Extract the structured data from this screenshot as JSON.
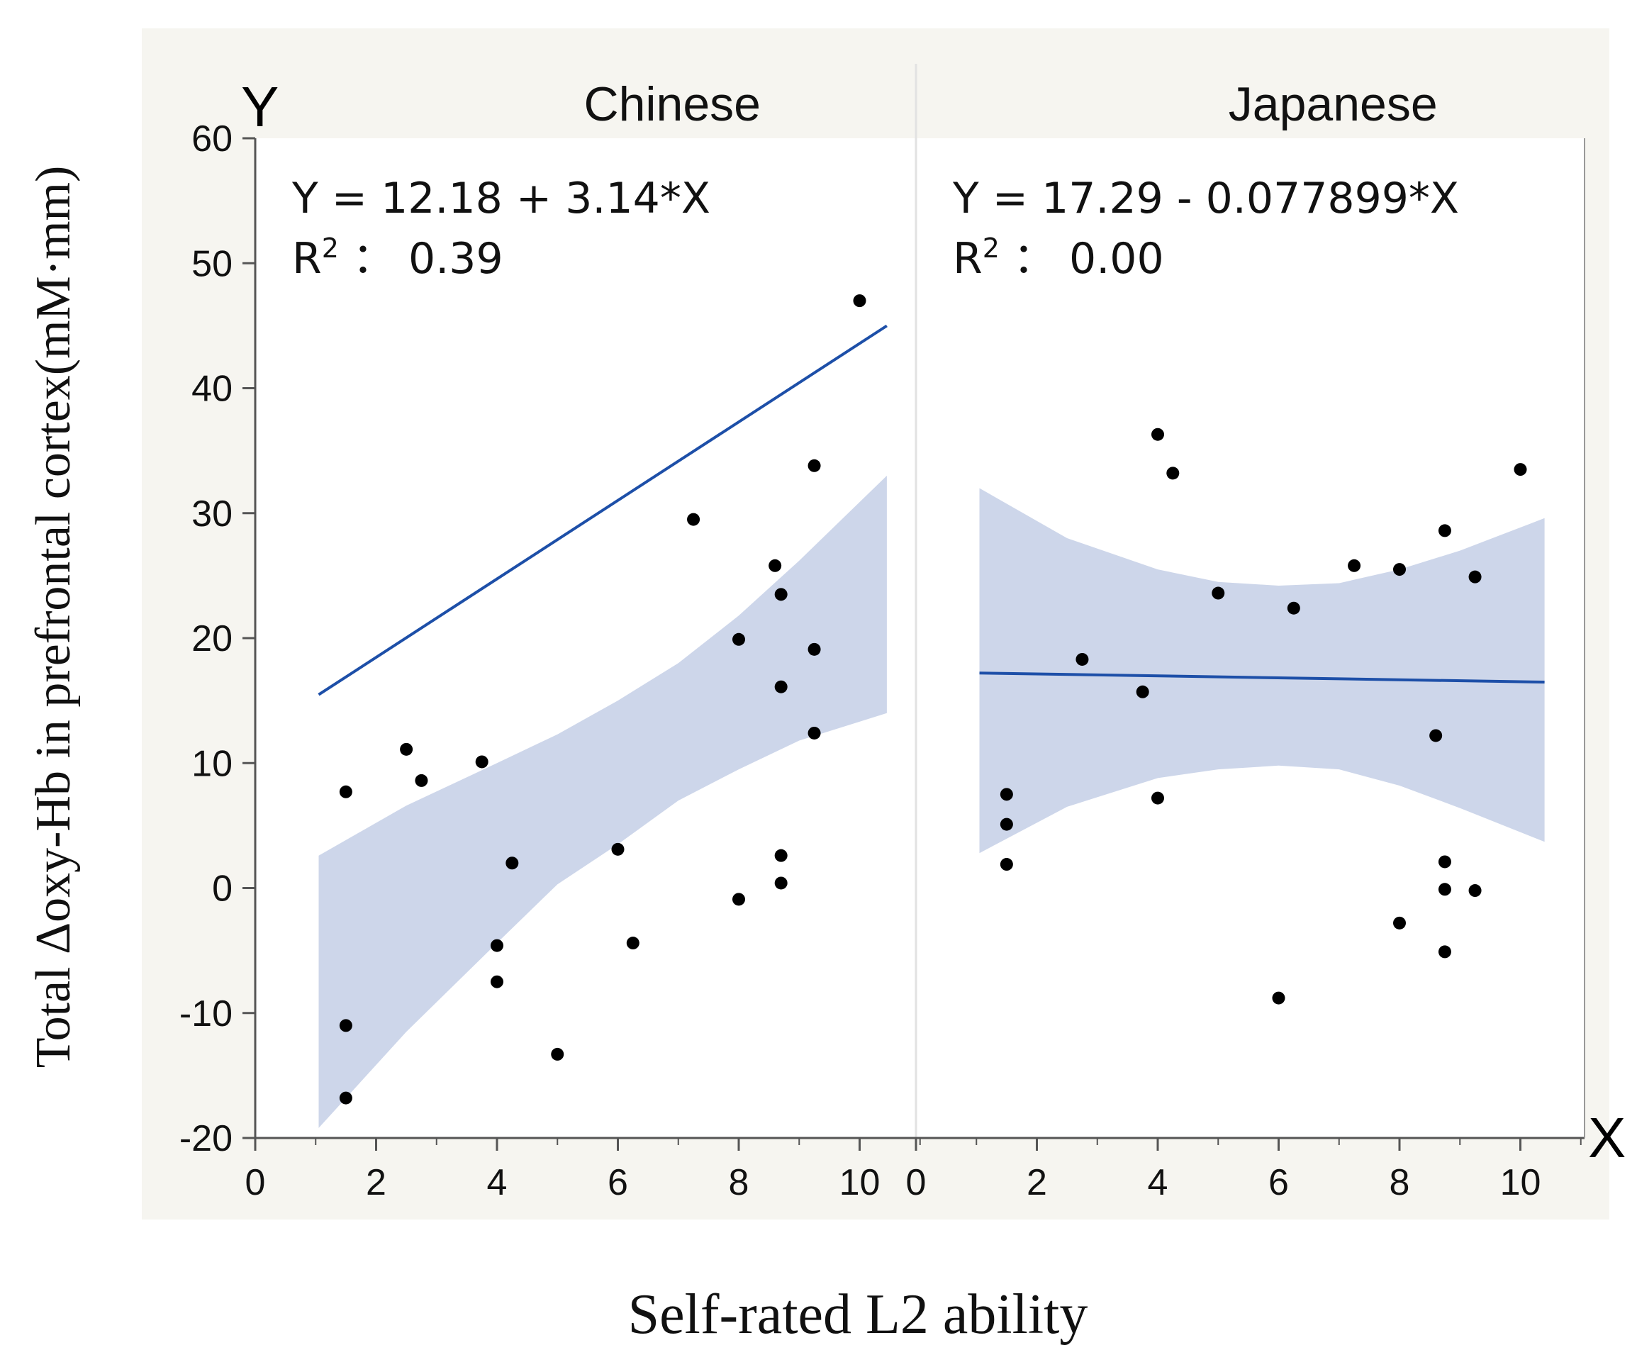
{
  "colors": {
    "panel_background": "#f6f5f0",
    "plot_background": "#ffffff",
    "band": "#cdd6ea",
    "fit_line": "#1d4fa8",
    "points": "#000000",
    "axis": "#555555"
  },
  "chart_data": {
    "type": "scatter",
    "x_axis_letter": "X",
    "y_axis_letter": "Y",
    "xlabel": "Self-rated L2 ability",
    "ylabel": "Total Δoxy-Hb in prefrontal cortex(mM·mm)",
    "ylim": [
      -20,
      60
    ],
    "yticks": [
      -20,
      -10,
      0,
      10,
      20,
      30,
      40,
      50,
      60
    ],
    "xlim": [
      0,
      11.4
    ],
    "xticks": [
      0,
      2,
      4,
      6,
      8,
      10
    ],
    "panels": [
      {
        "title": "Chinese",
        "equation": "Y = 12.18 + 3.14*X",
        "r2_label": "R",
        "r2_sup": "2",
        "r2_value": "： 0.39",
        "intercept": 12.18,
        "slope": 3.14,
        "fit_x_range": [
          1.05,
          10.45
        ],
        "band_upper": [
          [
            1.05,
            2.6
          ],
          [
            2.5,
            6.6
          ],
          [
            4.0,
            10.0
          ],
          [
            5.0,
            12.3
          ],
          [
            6.0,
            15.0
          ],
          [
            7.0,
            18.0
          ],
          [
            8.0,
            21.8
          ],
          [
            9.0,
            26.2
          ],
          [
            10.45,
            33.0
          ]
        ],
        "band_lower": [
          [
            1.05,
            -19.2
          ],
          [
            2.5,
            -11.5
          ],
          [
            4.0,
            -4.4
          ],
          [
            5.0,
            0.3
          ],
          [
            6.0,
            3.5
          ],
          [
            7.0,
            7.0
          ],
          [
            8.0,
            9.5
          ],
          [
            9.0,
            11.8
          ],
          [
            10.45,
            14.0
          ]
        ],
        "points": [
          [
            1.5,
            7.7
          ],
          [
            1.5,
            -11
          ],
          [
            1.5,
            -16.8
          ],
          [
            2.5,
            11.1
          ],
          [
            2.75,
            8.6
          ],
          [
            3.75,
            10.1
          ],
          [
            4.0,
            -4.6
          ],
          [
            4.0,
            -7.5
          ],
          [
            4.25,
            2.0
          ],
          [
            5.0,
            -13.3
          ],
          [
            6.0,
            3.1
          ],
          [
            6.25,
            -4.4
          ],
          [
            7.25,
            29.5
          ],
          [
            8.0,
            19.9
          ],
          [
            8.0,
            -0.9
          ],
          [
            8.6,
            25.8
          ],
          [
            8.7,
            23.5
          ],
          [
            8.7,
            16.1
          ],
          [
            8.7,
            2.6
          ],
          [
            8.7,
            0.4
          ],
          [
            9.25,
            33.8
          ],
          [
            9.25,
            19.1
          ],
          [
            9.25,
            12.4
          ],
          [
            10.0,
            47.0
          ]
        ]
      },
      {
        "title": "Japanese",
        "equation": "Y = 17.29 - 0.077899*X",
        "r2_label": "R",
        "r2_sup": "2",
        "r2_value": "： 0.00",
        "intercept": 17.29,
        "slope": -0.077899,
        "fit_x_range": [
          1.05,
          10.4
        ],
        "band_upper": [
          [
            1.05,
            32.0
          ],
          [
            2.5,
            28.0
          ],
          [
            4.0,
            25.5
          ],
          [
            5.0,
            24.5
          ],
          [
            6.0,
            24.2
          ],
          [
            7.0,
            24.4
          ],
          [
            8.0,
            25.5
          ],
          [
            9.0,
            27.0
          ],
          [
            10.4,
            29.6
          ]
        ],
        "band_lower": [
          [
            1.05,
            2.8
          ],
          [
            2.5,
            6.5
          ],
          [
            4.0,
            8.8
          ],
          [
            5.0,
            9.5
          ],
          [
            6.0,
            9.8
          ],
          [
            7.0,
            9.5
          ],
          [
            8.0,
            8.2
          ],
          [
            9.0,
            6.4
          ],
          [
            10.4,
            3.7
          ]
        ],
        "points": [
          [
            1.5,
            7.5
          ],
          [
            1.5,
            5.1
          ],
          [
            1.5,
            1.9
          ],
          [
            2.75,
            18.3
          ],
          [
            3.75,
            15.7
          ],
          [
            4.0,
            36.3
          ],
          [
            4.0,
            7.2
          ],
          [
            4.25,
            33.2
          ],
          [
            5.0,
            23.6
          ],
          [
            6.0,
            -8.8
          ],
          [
            6.25,
            22.4
          ],
          [
            7.25,
            25.8
          ],
          [
            8.0,
            25.5
          ],
          [
            8.0,
            -2.8
          ],
          [
            8.6,
            12.2
          ],
          [
            8.75,
            28.6
          ],
          [
            8.75,
            2.1
          ],
          [
            8.75,
            -0.1
          ],
          [
            8.75,
            -5.1
          ],
          [
            9.25,
            24.9
          ],
          [
            9.25,
            -0.2
          ],
          [
            10.0,
            33.5
          ]
        ]
      }
    ]
  }
}
